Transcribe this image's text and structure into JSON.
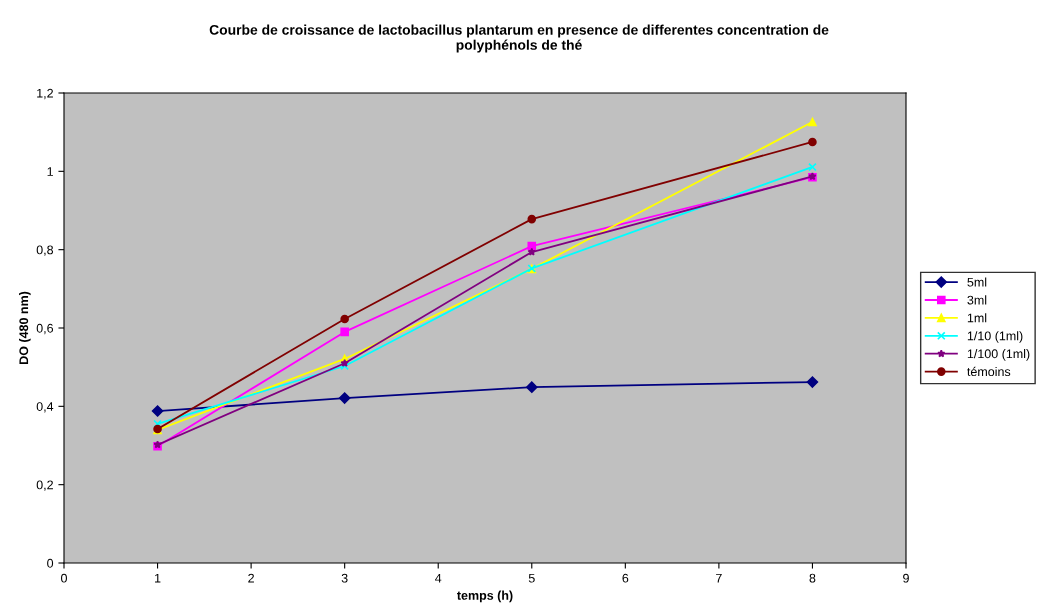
{
  "chart_data": {
    "type": "line",
    "title": "Courbe de croissance de lactobacillus plantarum en presence de differentes concentration de\npolyphénols de thé",
    "xlabel": "temps (h)",
    "ylabel": "DO (480 nm)",
    "x": [
      1,
      3,
      5,
      8
    ],
    "series": [
      {
        "name": "5ml",
        "color": "#000080",
        "marker": "diamond",
        "values": [
          0.388,
          0.421,
          0.449,
          0.462
        ]
      },
      {
        "name": "3ml",
        "color": "#ff00ff",
        "marker": "square",
        "values": [
          0.298,
          0.59,
          0.809,
          0.985
        ]
      },
      {
        "name": "1ml",
        "color": "#ffff00",
        "marker": "triangle",
        "values": [
          0.34,
          0.521,
          0.751,
          1.126
        ]
      },
      {
        "name": "1/10 (1ml)",
        "color": "#00ffff",
        "marker": "cross",
        "values": [
          0.355,
          0.503,
          0.752,
          1.011
        ]
      },
      {
        "name": "1/100 (1ml)",
        "color": "#800080",
        "marker": "star",
        "values": [
          0.302,
          0.51,
          0.794,
          0.987
        ]
      },
      {
        "name": "témoins",
        "color": "#800000",
        "marker": "circle",
        "values": [
          0.342,
          0.623,
          0.878,
          1.075
        ]
      }
    ],
    "xlim": [
      0,
      9
    ],
    "xticks": [
      0,
      1,
      2,
      3,
      4,
      5,
      6,
      7,
      8,
      9
    ],
    "ylim": [
      0,
      1.2
    ],
    "yticks": [
      {
        "value": 0,
        "label": "0"
      },
      {
        "value": 0.2,
        "label": "0,2"
      },
      {
        "value": 0.4,
        "label": "0,4"
      },
      {
        "value": 0.6,
        "label": "0,6"
      },
      {
        "value": 0.8,
        "label": "0,8"
      },
      {
        "value": 1,
        "label": "1"
      },
      {
        "value": 1.2,
        "label": "1,2"
      }
    ],
    "grid": false,
    "legend": "right",
    "line_style": "solid"
  }
}
